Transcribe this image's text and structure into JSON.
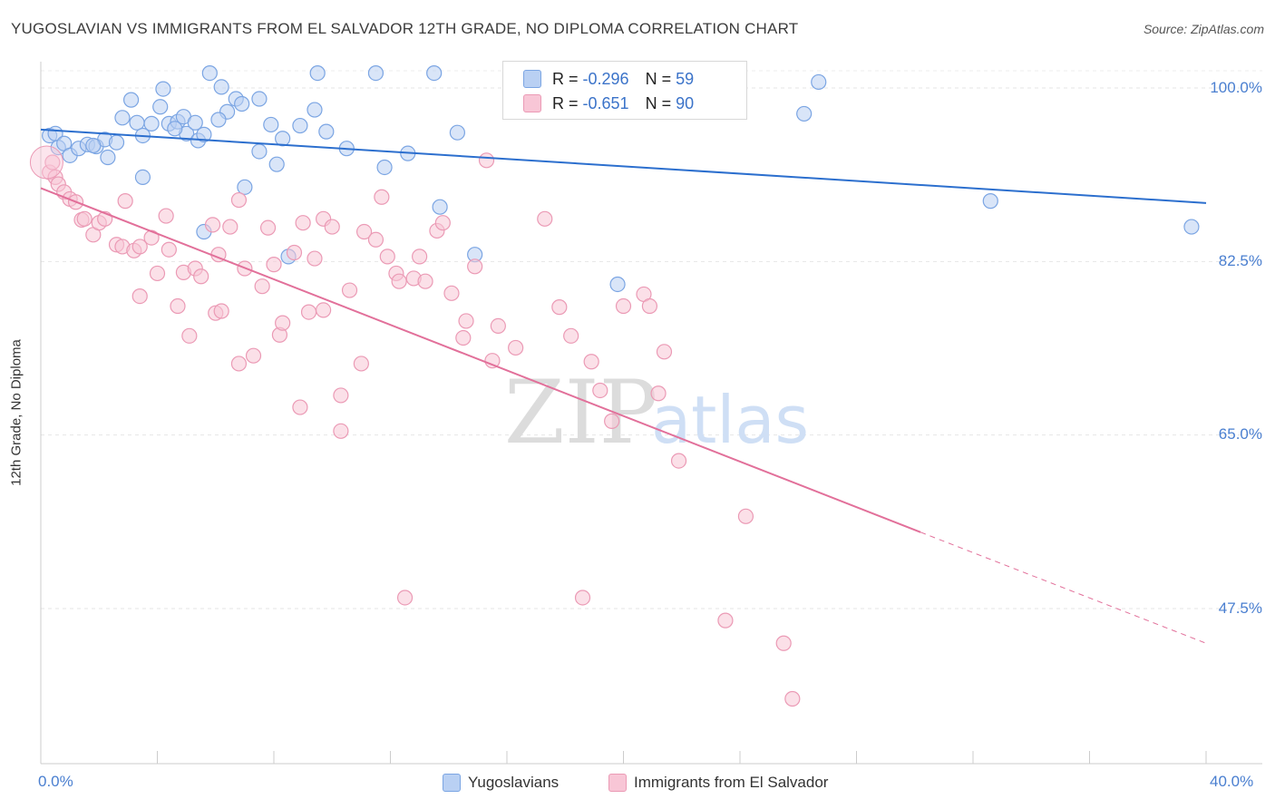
{
  "title": "YUGOSLAVIAN VS IMMIGRANTS FROM EL SALVADOR 12TH GRADE, NO DIPLOMA CORRELATION CHART",
  "source": "Source: ZipAtlas.com",
  "watermark": {
    "zip": "ZIP",
    "atlas": "atlas"
  },
  "legend": {
    "r_label": "R =",
    "n_label": "N =",
    "rows": [
      {
        "r": "-0.296",
        "n": "59"
      },
      {
        "r": "-0.651",
        "n": "90"
      }
    ]
  },
  "colors": {
    "blue_fill": "#b9d0f3",
    "blue_stroke": "#7ba5e3",
    "blue_line": "#2c6fce",
    "pink_fill": "#f8c6d6",
    "pink_stroke": "#eb9ab5",
    "pink_line": "#e2709a",
    "tick_text": "#4a7fd0"
  },
  "chart_data": {
    "type": "scatter",
    "title": "YUGOSLAVIAN VS IMMIGRANTS FROM EL SALVADOR 12TH GRADE, NO DIPLOMA CORRELATION CHART",
    "xlabel": "",
    "ylabel": "12th Grade, No Diploma",
    "xlim": [
      0,
      40
    ],
    "ylim": [
      31,
      103
    ],
    "x_tick_labels": [
      "0.0%",
      "40.0%"
    ],
    "y_ticks": [
      100,
      82.5,
      65,
      47.5
    ],
    "y_tick_labels": [
      "100.0%",
      "82.5%",
      "65.0%",
      "47.5%"
    ],
    "grid": true,
    "legend_position": "top-center",
    "series": [
      {
        "name": "Yugoslavians",
        "r": -0.296,
        "n": 59,
        "trend": {
          "x": [
            0,
            40
          ],
          "y": [
            95.8,
            88.4
          ]
        },
        "points": [
          [
            0.3,
            95.2
          ],
          [
            0.5,
            95.4
          ],
          [
            0.6,
            94.0
          ],
          [
            0.8,
            94.4
          ],
          [
            1.0,
            93.2
          ],
          [
            1.3,
            93.9
          ],
          [
            1.6,
            94.3
          ],
          [
            1.9,
            94.1
          ],
          [
            2.2,
            94.8
          ],
          [
            2.6,
            94.5
          ],
          [
            2.8,
            97.0
          ],
          [
            3.1,
            98.8
          ],
          [
            3.3,
            96.5
          ],
          [
            3.5,
            95.2
          ],
          [
            3.5,
            91.0
          ],
          [
            3.8,
            96.4
          ],
          [
            4.1,
            98.1
          ],
          [
            4.2,
            99.9
          ],
          [
            4.4,
            96.4
          ],
          [
            4.7,
            96.6
          ],
          [
            4.9,
            97.1
          ],
          [
            5.0,
            95.4
          ],
          [
            5.3,
            96.5
          ],
          [
            5.4,
            94.7
          ],
          [
            5.6,
            95.3
          ],
          [
            5.6,
            85.5
          ],
          [
            5.8,
            101.5
          ],
          [
            6.2,
            100.1
          ],
          [
            6.4,
            97.6
          ],
          [
            6.7,
            98.9
          ],
          [
            6.9,
            98.4
          ],
          [
            7.0,
            90.0
          ],
          [
            7.5,
            98.9
          ],
          [
            7.5,
            93.6
          ],
          [
            7.9,
            96.3
          ],
          [
            8.1,
            92.3
          ],
          [
            8.3,
            94.9
          ],
          [
            8.5,
            83.0
          ],
          [
            8.9,
            96.2
          ],
          [
            9.4,
            97.8
          ],
          [
            9.5,
            101.5
          ],
          [
            9.8,
            95.6
          ],
          [
            10.5,
            93.9
          ],
          [
            11.5,
            101.5
          ],
          [
            11.8,
            92.0
          ],
          [
            12.6,
            93.4
          ],
          [
            13.5,
            101.5
          ],
          [
            13.7,
            88.0
          ],
          [
            14.3,
            95.5
          ],
          [
            14.9,
            83.2
          ],
          [
            19.8,
            80.2
          ],
          [
            26.2,
            97.4
          ],
          [
            26.7,
            100.6
          ],
          [
            32.6,
            88.6
          ],
          [
            39.5,
            86.0
          ],
          [
            1.8,
            94.2
          ],
          [
            2.3,
            93.0
          ],
          [
            4.6,
            95.9
          ],
          [
            6.1,
            96.8
          ]
        ]
      },
      {
        "name": "Immigrants from El Salvador",
        "r": -0.651,
        "n": 90,
        "trend": {
          "x": [
            0,
            30.2
          ],
          "y": [
            89.9,
            55.2
          ]
        },
        "trend_dashed": {
          "x": [
            30.2,
            40
          ],
          "y": [
            55.2,
            44.0
          ]
        },
        "points": [
          [
            0.3,
            91.5
          ],
          [
            0.4,
            92.5
          ],
          [
            0.5,
            91.0
          ],
          [
            0.6,
            90.3
          ],
          [
            0.8,
            89.5
          ],
          [
            1.0,
            88.8
          ],
          [
            1.2,
            88.5
          ],
          [
            1.4,
            86.7
          ],
          [
            1.5,
            86.8
          ],
          [
            1.8,
            85.2
          ],
          [
            2.0,
            86.4
          ],
          [
            2.2,
            86.8
          ],
          [
            2.6,
            84.2
          ],
          [
            2.8,
            84.0
          ],
          [
            2.9,
            88.6
          ],
          [
            3.2,
            83.6
          ],
          [
            3.4,
            84.0
          ],
          [
            3.4,
            79.0
          ],
          [
            3.8,
            84.9
          ],
          [
            4.0,
            81.3
          ],
          [
            4.3,
            87.1
          ],
          [
            4.4,
            83.7
          ],
          [
            4.7,
            78.0
          ],
          [
            4.9,
            81.4
          ],
          [
            5.1,
            75.0
          ],
          [
            5.3,
            81.8
          ],
          [
            5.5,
            81.0
          ],
          [
            5.9,
            86.2
          ],
          [
            6.0,
            77.3
          ],
          [
            6.1,
            83.2
          ],
          [
            6.2,
            77.5
          ],
          [
            6.5,
            86.0
          ],
          [
            6.8,
            88.7
          ],
          [
            6.8,
            72.2
          ],
          [
            7.0,
            81.8
          ],
          [
            7.3,
            73.0
          ],
          [
            7.6,
            80.0
          ],
          [
            7.8,
            85.9
          ],
          [
            8.0,
            82.2
          ],
          [
            8.2,
            75.1
          ],
          [
            8.3,
            76.3
          ],
          [
            8.7,
            83.4
          ],
          [
            8.9,
            67.8
          ],
          [
            9.0,
            86.4
          ],
          [
            9.2,
            77.4
          ],
          [
            9.4,
            82.8
          ],
          [
            9.7,
            86.8
          ],
          [
            9.7,
            77.6
          ],
          [
            10.0,
            86.0
          ],
          [
            10.3,
            69.0
          ],
          [
            10.3,
            65.4
          ],
          [
            10.6,
            79.6
          ],
          [
            11.0,
            72.2
          ],
          [
            11.1,
            85.5
          ],
          [
            11.5,
            84.7
          ],
          [
            11.7,
            89.0
          ],
          [
            11.9,
            83.0
          ],
          [
            12.2,
            81.3
          ],
          [
            12.3,
            80.5
          ],
          [
            12.5,
            48.6
          ],
          [
            12.8,
            80.8
          ],
          [
            13.0,
            83.0
          ],
          [
            13.2,
            80.5
          ],
          [
            13.6,
            85.6
          ],
          [
            13.8,
            86.4
          ],
          [
            14.1,
            79.3
          ],
          [
            14.5,
            74.8
          ],
          [
            14.6,
            76.5
          ],
          [
            14.9,
            82.0
          ],
          [
            15.3,
            92.7
          ],
          [
            15.5,
            72.5
          ],
          [
            15.7,
            76.0
          ],
          [
            16.3,
            73.8
          ],
          [
            17.3,
            86.8
          ],
          [
            17.8,
            77.9
          ],
          [
            18.2,
            75.0
          ],
          [
            18.6,
            48.6
          ],
          [
            18.9,
            72.4
          ],
          [
            19.2,
            69.5
          ],
          [
            19.6,
            66.4
          ],
          [
            20.0,
            78.0
          ],
          [
            20.7,
            79.2
          ],
          [
            20.9,
            78.0
          ],
          [
            21.2,
            69.2
          ],
          [
            21.4,
            73.4
          ],
          [
            21.9,
            62.4
          ],
          [
            23.5,
            46.3
          ],
          [
            24.2,
            56.8
          ],
          [
            25.5,
            44.0
          ],
          [
            25.8,
            38.4
          ]
        ]
      }
    ]
  }
}
